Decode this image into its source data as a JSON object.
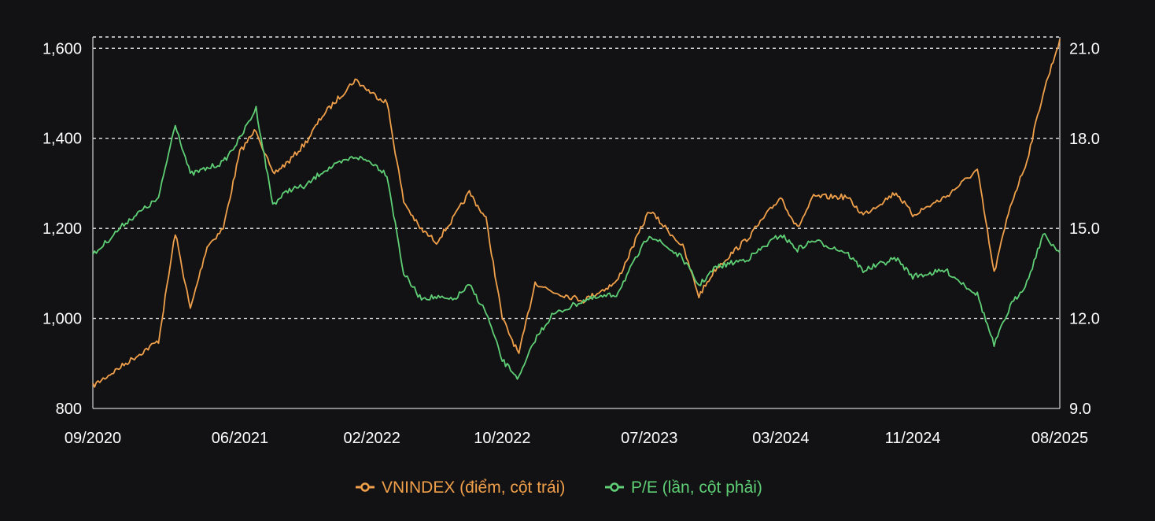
{
  "chart_data": {
    "type": "line",
    "title": "",
    "xlabel": "",
    "ylabel": "",
    "x_tick_labels": [
      "09/2020",
      "06/2021",
      "02/2022",
      "10/2022",
      "07/2023",
      "03/2024",
      "11/2024",
      "08/2025"
    ],
    "x_tick_values": [
      "2020-09",
      "2021-06",
      "2022-02",
      "2022-10",
      "2023-07",
      "2024-03",
      "2024-11",
      "2025-08"
    ],
    "y_left": {
      "ticks": [
        800,
        1000,
        1200,
        1400,
        1600
      ],
      "tick_labels": [
        "800",
        "1,000",
        "1,200",
        "1,400",
        "1,600"
      ],
      "ylim": [
        800,
        1625
      ]
    },
    "y_right": {
      "ticks": [
        9,
        12,
        15,
        18,
        21
      ],
      "tick_labels": [
        "9.0",
        "12.0",
        "15.0",
        "18.0",
        "21.0"
      ],
      "ylim": [
        9,
        21.38
      ]
    },
    "grid": "horizontal-dashed",
    "legend_position": "bottom-center",
    "series": [
      {
        "name": "VNINDEX (điểm, cột trái)",
        "axis": "left",
        "color": "#f0a04a",
        "x": [
          "2020-09",
          "2020-11",
          "2021-01",
          "2021-02",
          "2021-03",
          "2021-04",
          "2021-05",
          "2021-06",
          "2021-07",
          "2021-08",
          "2021-09",
          "2021-10",
          "2021-11",
          "2022-01",
          "2022-02",
          "2022-03",
          "2022-04",
          "2022-05",
          "2022-06",
          "2022-07",
          "2022-08",
          "2022-09",
          "2022-10",
          "2022-11",
          "2022-12",
          "2023-01",
          "2023-03",
          "2023-05",
          "2023-07",
          "2023-09",
          "2023-10",
          "2023-11",
          "2024-01",
          "2024-03",
          "2024-04",
          "2024-05",
          "2024-07",
          "2024-08",
          "2024-10",
          "2024-11",
          "2025-01",
          "2025-03",
          "2025-04",
          "2025-05",
          "2025-06",
          "2025-07",
          "2025-08"
        ],
        "y": [
          850,
          900,
          950,
          1190,
          1020,
          1160,
          1200,
          1370,
          1420,
          1320,
          1350,
          1390,
          1450,
          1530,
          1500,
          1480,
          1260,
          1200,
          1170,
          1220,
          1280,
          1220,
          1000,
          920,
          1080,
          1060,
          1040,
          1080,
          1240,
          1160,
          1050,
          1110,
          1180,
          1270,
          1200,
          1270,
          1270,
          1230,
          1280,
          1230,
          1270,
          1330,
          1100,
          1250,
          1350,
          1500,
          1620
        ]
      },
      {
        "name": "P/E (lần, cột phải)",
        "axis": "right",
        "color": "#5fcf76",
        "x": [
          "2020-09",
          "2020-11",
          "2021-01",
          "2021-02",
          "2021-03",
          "2021-04",
          "2021-05",
          "2021-06",
          "2021-07",
          "2021-08",
          "2021-09",
          "2021-10",
          "2021-11",
          "2022-01",
          "2022-02",
          "2022-03",
          "2022-04",
          "2022-05",
          "2022-06",
          "2022-07",
          "2022-08",
          "2022-09",
          "2022-10",
          "2022-11",
          "2022-12",
          "2023-01",
          "2023-03",
          "2023-05",
          "2023-07",
          "2023-09",
          "2023-10",
          "2023-11",
          "2024-01",
          "2024-03",
          "2024-04",
          "2024-05",
          "2024-07",
          "2024-08",
          "2024-10",
          "2024-11",
          "2025-01",
          "2025-03",
          "2025-04",
          "2025-05",
          "2025-06",
          "2025-07",
          "2025-08"
        ],
        "y": [
          14.1,
          15.2,
          16.0,
          18.5,
          16.8,
          17.0,
          17.2,
          18.0,
          19.0,
          15.8,
          16.3,
          16.4,
          16.9,
          17.4,
          17.2,
          16.8,
          13.5,
          12.7,
          12.7,
          12.6,
          13.1,
          12.2,
          10.6,
          10.0,
          11.3,
          12.1,
          12.6,
          12.8,
          14.8,
          14.0,
          13.1,
          13.7,
          14.0,
          14.8,
          14.3,
          14.6,
          14.2,
          13.6,
          14.0,
          13.4,
          13.6,
          12.8,
          11.1,
          12.4,
          13.2,
          14.8,
          14.2
        ]
      }
    ]
  }
}
